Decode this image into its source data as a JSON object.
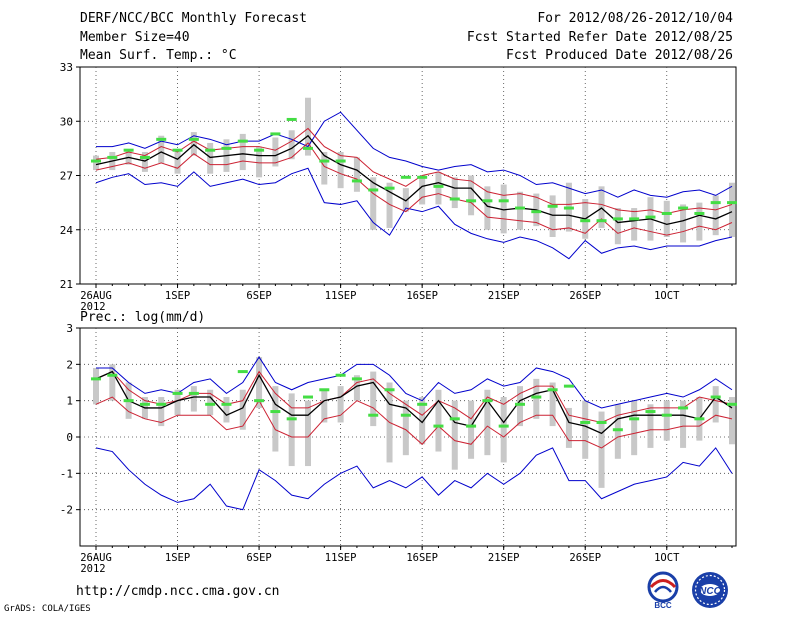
{
  "header": {
    "title": "DERF/NCC/BCC Monthly Forecast",
    "member_size": "Member Size=40",
    "period": "For 2012/08/26-2012/10/04",
    "started": "Fcst Started Refer Date 2012/08/25",
    "produced": "Fcst Produced Date 2012/08/26"
  },
  "footer": {
    "url": "http://cmdp.ncc.cma.gov.cn",
    "grads": "GrADS: COLA/IGES",
    "logo_left": "BCC",
    "logo_right": "NCC"
  },
  "colors": {
    "ensemble_range": "#0000cc",
    "mean": "#000000",
    "spread": "#cc2233",
    "box": "#c8c8c8",
    "median": "#44dd44",
    "grid": "#444444"
  },
  "chart_data": [
    {
      "type": "line",
      "title": "Mean Surf. Temp.: °C",
      "ylabel": "Mean Surf. Temp.: °C",
      "ylim": [
        21,
        33
      ],
      "yticks": [
        21,
        24,
        27,
        30,
        33
      ],
      "x_days": [
        1,
        2,
        3,
        4,
        5,
        6,
        7,
        8,
        9,
        10,
        11,
        12,
        13,
        14,
        15,
        16,
        17,
        18,
        19,
        20,
        21,
        22,
        23,
        24,
        25,
        26,
        27,
        28,
        29,
        30,
        31,
        32,
        33,
        34,
        35,
        36,
        37,
        38,
        39,
        40
      ],
      "xtick_positions": [
        1,
        6,
        11,
        16,
        21,
        26,
        31,
        36
      ],
      "xtick_labels": [
        "26AUG",
        "1SEP",
        "6SEP",
        "11SEP",
        "16SEP",
        "21SEP",
        "26SEP",
        "1OCT"
      ],
      "xtick_sublabel": "2012",
      "grid": "dotted",
      "series": [
        {
          "name": "max",
          "values": [
            28.6,
            28.6,
            28.8,
            28.5,
            28.9,
            28.7,
            29.2,
            29.0,
            28.7,
            28.9,
            28.9,
            29.3,
            29.0,
            28.6,
            30.0,
            30.5,
            29.5,
            28.5,
            28.0,
            27.8,
            27.5,
            27.3,
            27.5,
            27.6,
            27.2,
            27.3,
            27.0,
            26.5,
            26.6,
            26.3,
            26.0,
            26.2,
            25.8,
            26.2,
            25.9,
            25.8,
            26.1,
            26.2,
            25.9,
            26.4
          ]
        },
        {
          "name": "upper",
          "values": [
            27.9,
            28.0,
            28.3,
            28.1,
            28.6,
            28.3,
            28.9,
            28.4,
            28.5,
            28.6,
            28.6,
            28.4,
            28.9,
            29.6,
            28.6,
            28.1,
            28.0,
            27.2,
            26.8,
            26.4,
            27.0,
            27.2,
            26.8,
            26.7,
            26.1,
            25.9,
            26.0,
            25.8,
            25.4,
            25.4,
            25.5,
            25.4,
            25.1,
            25.0,
            25.1,
            24.9,
            25.1,
            25.2,
            25.1,
            25.4
          ]
        },
        {
          "name": "mean",
          "values": [
            27.6,
            27.8,
            28.0,
            27.8,
            28.3,
            27.9,
            28.7,
            28.0,
            28.1,
            28.2,
            28.1,
            28.1,
            28.5,
            29.2,
            28.1,
            27.6,
            27.3,
            26.6,
            26.1,
            25.6,
            26.4,
            26.6,
            26.3,
            26.3,
            25.3,
            25.1,
            25.2,
            25.1,
            24.8,
            24.8,
            24.6,
            25.2,
            24.4,
            24.5,
            24.6,
            24.3,
            24.5,
            24.8,
            24.6,
            25.0
          ]
        },
        {
          "name": "lower",
          "values": [
            27.3,
            27.5,
            27.7,
            27.4,
            27.7,
            27.4,
            28.2,
            27.6,
            27.6,
            27.8,
            27.7,
            27.7,
            28.0,
            28.8,
            27.5,
            27.1,
            26.8,
            26.0,
            25.4,
            25.0,
            25.8,
            26.0,
            25.7,
            25.5,
            24.7,
            24.6,
            24.5,
            24.4,
            24.0,
            24.1,
            23.8,
            24.6,
            23.8,
            24.1,
            23.9,
            23.7,
            23.9,
            24.2,
            24.0,
            24.4
          ]
        },
        {
          "name": "min",
          "values": [
            26.6,
            26.9,
            27.1,
            26.5,
            26.6,
            26.4,
            27.2,
            26.4,
            26.6,
            26.8,
            26.5,
            26.6,
            27.1,
            27.4,
            25.5,
            25.4,
            25.6,
            24.4,
            23.7,
            25.2,
            25.0,
            25.3,
            24.3,
            23.8,
            23.5,
            23.3,
            23.6,
            23.4,
            23.0,
            22.4,
            23.4,
            22.7,
            23.0,
            23.1,
            22.9,
            23.1,
            23.1,
            23.1,
            23.4,
            23.6
          ]
        },
        {
          "name": "box_top",
          "values": [
            28.1,
            28.3,
            28.4,
            28.3,
            29.2,
            28.4,
            29.4,
            28.8,
            29.0,
            29.3,
            28.6,
            29.1,
            29.5,
            31.3,
            28.3,
            28.3,
            28.0,
            26.9,
            26.6,
            26.3,
            27.0,
            27.2,
            26.9,
            27.0,
            26.4,
            26.5,
            26.1,
            26.0,
            25.9,
            26.6,
            25.7,
            26.4,
            25.2,
            25.2,
            25.8,
            25.6,
            25.4,
            25.5,
            25.9,
            26.6
          ]
        },
        {
          "name": "box_bottom",
          "values": [
            27.3,
            27.3,
            27.6,
            27.2,
            27.7,
            27.1,
            28.1,
            27.1,
            27.2,
            27.3,
            26.9,
            27.5,
            27.9,
            28.1,
            26.5,
            26.3,
            26.1,
            24.0,
            24.1,
            25.0,
            25.4,
            25.4,
            25.2,
            24.8,
            24.0,
            23.8,
            24.0,
            24.2,
            23.6,
            23.9,
            23.5,
            24.1,
            23.2,
            23.4,
            23.4,
            23.6,
            23.3,
            23.4,
            23.7,
            23.6
          ]
        },
        {
          "name": "median",
          "values": [
            27.8,
            28.0,
            28.4,
            28.0,
            29.0,
            28.4,
            29.0,
            28.4,
            28.5,
            28.9,
            28.4,
            29.3,
            30.1,
            28.5,
            27.8,
            27.8,
            26.7,
            26.2,
            26.3,
            26.9,
            26.9,
            26.4,
            25.7,
            25.6,
            25.6,
            25.6,
            25.2,
            25.0,
            25.3,
            25.2,
            24.5,
            24.5,
            24.6,
            24.6,
            24.7,
            24.9,
            25.2,
            24.9,
            25.5,
            25.5
          ]
        }
      ]
    },
    {
      "type": "line",
      "title": "Prec.: log(mm/d)",
      "ylabel": "Prec.: log(mm/d)",
      "ylim": [
        -3,
        3
      ],
      "yticks": [
        -2,
        -1,
        0,
        1,
        2,
        3
      ],
      "x_days": [
        1,
        2,
        3,
        4,
        5,
        6,
        7,
        8,
        9,
        10,
        11,
        12,
        13,
        14,
        15,
        16,
        17,
        18,
        19,
        20,
        21,
        22,
        23,
        24,
        25,
        26,
        27,
        28,
        29,
        30,
        31,
        32,
        33,
        34,
        35,
        36,
        37,
        38,
        39,
        40
      ],
      "xtick_positions": [
        1,
        6,
        11,
        16,
        21,
        26,
        31,
        36
      ],
      "xtick_labels": [
        "26AUG",
        "1SEP",
        "6SEP",
        "11SEP",
        "16SEP",
        "21SEP",
        "26SEP",
        "1OCT"
      ],
      "xtick_sublabel": "2012",
      "grid": "dotted",
      "series": [
        {
          "name": "max",
          "values": [
            1.9,
            1.9,
            1.5,
            1.2,
            1.3,
            1.2,
            1.5,
            1.6,
            1.2,
            1.5,
            2.2,
            1.5,
            1.3,
            1.5,
            1.6,
            1.7,
            2.0,
            2.0,
            1.7,
            1.2,
            1.0,
            1.5,
            1.2,
            1.3,
            1.6,
            1.4,
            1.5,
            1.9,
            1.8,
            1.6,
            1.0,
            0.8,
            0.9,
            1.0,
            1.1,
            1.2,
            1.1,
            1.3,
            1.6,
            1.3
          ]
        },
        {
          "name": "upper",
          "values": [
            1.6,
            1.8,
            1.3,
            1.0,
            0.9,
            1.0,
            1.2,
            1.2,
            0.9,
            1.0,
            1.8,
            1.2,
            0.8,
            0.8,
            1.0,
            1.1,
            1.5,
            1.6,
            1.2,
            0.9,
            0.6,
            1.0,
            0.8,
            0.5,
            1.1,
            0.9,
            1.2,
            1.4,
            1.4,
            0.6,
            0.5,
            0.4,
            0.6,
            0.7,
            0.8,
            0.8,
            0.8,
            1.1,
            1.0,
            0.9
          ]
        },
        {
          "name": "mean",
          "values": [
            1.6,
            1.8,
            1.0,
            0.8,
            0.8,
            1.0,
            1.1,
            1.1,
            0.6,
            0.8,
            1.7,
            0.9,
            0.6,
            0.6,
            1.0,
            1.1,
            1.4,
            1.5,
            0.9,
            0.8,
            0.4,
            1.0,
            0.4,
            0.3,
            1.0,
            0.4,
            1.0,
            1.2,
            1.3,
            0.4,
            0.3,
            0.1,
            0.5,
            0.6,
            0.6,
            0.6,
            0.6,
            0.5,
            1.1,
            0.8
          ]
        },
        {
          "name": "lower",
          "values": [
            0.9,
            1.1,
            0.7,
            0.5,
            0.4,
            0.6,
            0.6,
            0.6,
            0.2,
            0.3,
            1.0,
            0.2,
            0.0,
            0.0,
            0.5,
            0.6,
            1.0,
            0.8,
            0.4,
            0.2,
            -0.2,
            0.3,
            -0.1,
            -0.2,
            0.3,
            0.0,
            0.4,
            0.6,
            0.6,
            -0.1,
            -0.1,
            -0.3,
            0.0,
            0.1,
            0.2,
            0.2,
            0.3,
            0.3,
            0.6,
            0.5
          ]
        },
        {
          "name": "min",
          "values": [
            -0.3,
            -0.4,
            -0.9,
            -1.3,
            -1.6,
            -1.8,
            -1.7,
            -1.3,
            -1.9,
            -2.0,
            -0.9,
            -1.2,
            -1.6,
            -1.7,
            -1.3,
            -1.0,
            -0.8,
            -1.4,
            -1.2,
            -1.4,
            -1.1,
            -1.6,
            -1.2,
            -1.4,
            -1.0,
            -1.3,
            -1.0,
            -0.5,
            -0.3,
            -1.2,
            -1.2,
            -1.7,
            -1.5,
            -1.3,
            -1.2,
            -1.1,
            -0.7,
            -0.8,
            -0.3,
            -1.0
          ]
        },
        {
          "name": "box_top",
          "values": [
            1.9,
            2.0,
            1.5,
            1.1,
            1.1,
            1.3,
            1.4,
            1.3,
            1.1,
            1.3,
            2.2,
            1.4,
            1.2,
            1.0,
            1.3,
            1.4,
            1.7,
            1.8,
            1.5,
            1.0,
            1.1,
            1.3,
            1.0,
            1.0,
            1.3,
            1.1,
            1.4,
            1.6,
            1.5,
            0.8,
            1.0,
            0.7,
            0.9,
            1.0,
            0.9,
            1.0,
            1.0,
            1.1,
            1.4,
            1.1
          ]
        },
        {
          "name": "box_bottom",
          "values": [
            0.9,
            1.0,
            0.5,
            0.5,
            0.3,
            0.6,
            0.7,
            0.6,
            0.4,
            0.2,
            0.8,
            -0.4,
            -0.8,
            -0.8,
            0.4,
            0.4,
            1.0,
            0.3,
            -0.7,
            -0.5,
            -0.2,
            -0.4,
            -0.9,
            -0.6,
            -0.5,
            -0.7,
            0.3,
            0.5,
            0.3,
            -0.3,
            -0.6,
            -1.4,
            -0.6,
            -0.5,
            -0.3,
            -0.1,
            -0.3,
            -0.1,
            0.4,
            -0.2
          ]
        },
        {
          "name": "median",
          "values": [
            1.6,
            1.7,
            1.0,
            0.9,
            0.9,
            1.2,
            1.2,
            0.9,
            0.9,
            1.8,
            1.0,
            0.7,
            0.5,
            1.1,
            1.3,
            1.7,
            1.6,
            0.6,
            1.3,
            0.6,
            0.9,
            0.3,
            0.5,
            0.3,
            1.0,
            0.3,
            0.9,
            1.1,
            1.3,
            1.4,
            0.4,
            0.4,
            0.2,
            0.5,
            0.7,
            0.6,
            0.8,
            0.5,
            1.1,
            0.9
          ]
        }
      ]
    }
  ]
}
